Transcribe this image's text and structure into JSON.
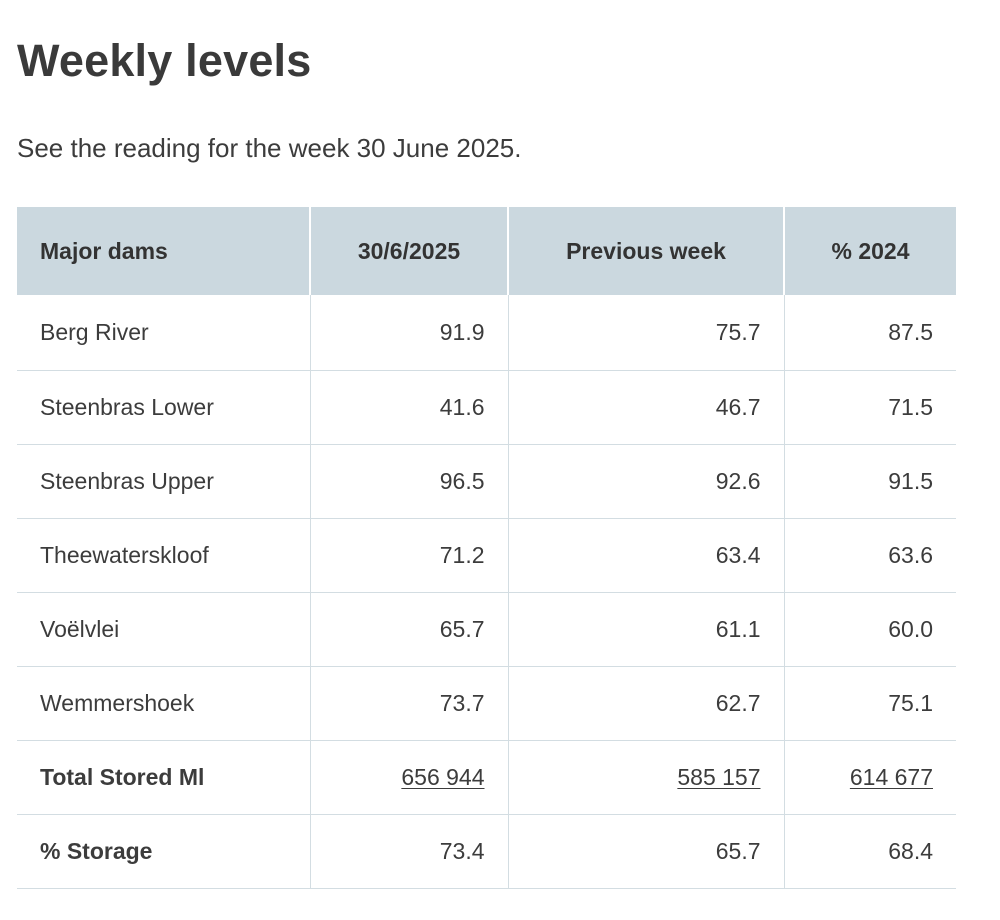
{
  "page": {
    "title": "Weekly levels",
    "intro": "See the reading for the week 30 June 2025."
  },
  "table": {
    "headers": [
      "Major dams",
      "30/6/2025",
      "Previous week",
      "% 2024"
    ],
    "rows": [
      {
        "dam": "Berg River",
        "current": "91.9",
        "previous": "75.7",
        "year2024": "87.5"
      },
      {
        "dam": "Steenbras Lower",
        "current": "41.6",
        "previous": "46.7",
        "year2024": "71.5"
      },
      {
        "dam": "Steenbras Upper",
        "current": "96.5",
        "previous": "92.6",
        "year2024": "91.5"
      },
      {
        "dam": "Theewaterskloof",
        "current": "71.2",
        "previous": "63.4",
        "year2024": "63.6"
      },
      {
        "dam": "Voëlvlei",
        "current": "65.7",
        "previous": "61.1",
        "year2024": "60.0"
      },
      {
        "dam": "Wemmershoek",
        "current": "73.7",
        "previous": "62.7",
        "year2024": "75.1"
      }
    ],
    "total_stored": {
      "label": "Total Stored Ml",
      "current": "656 944",
      "previous": "585 157",
      "year2024": "614 677"
    },
    "storage": {
      "label": "% Storage",
      "current": "73.4",
      "previous": "65.7",
      "year2024": "68.4"
    }
  },
  "colors": {
    "header_bg": "#cbd8df",
    "grid_line": "#d3dde2",
    "text": "#3c3c3c"
  }
}
